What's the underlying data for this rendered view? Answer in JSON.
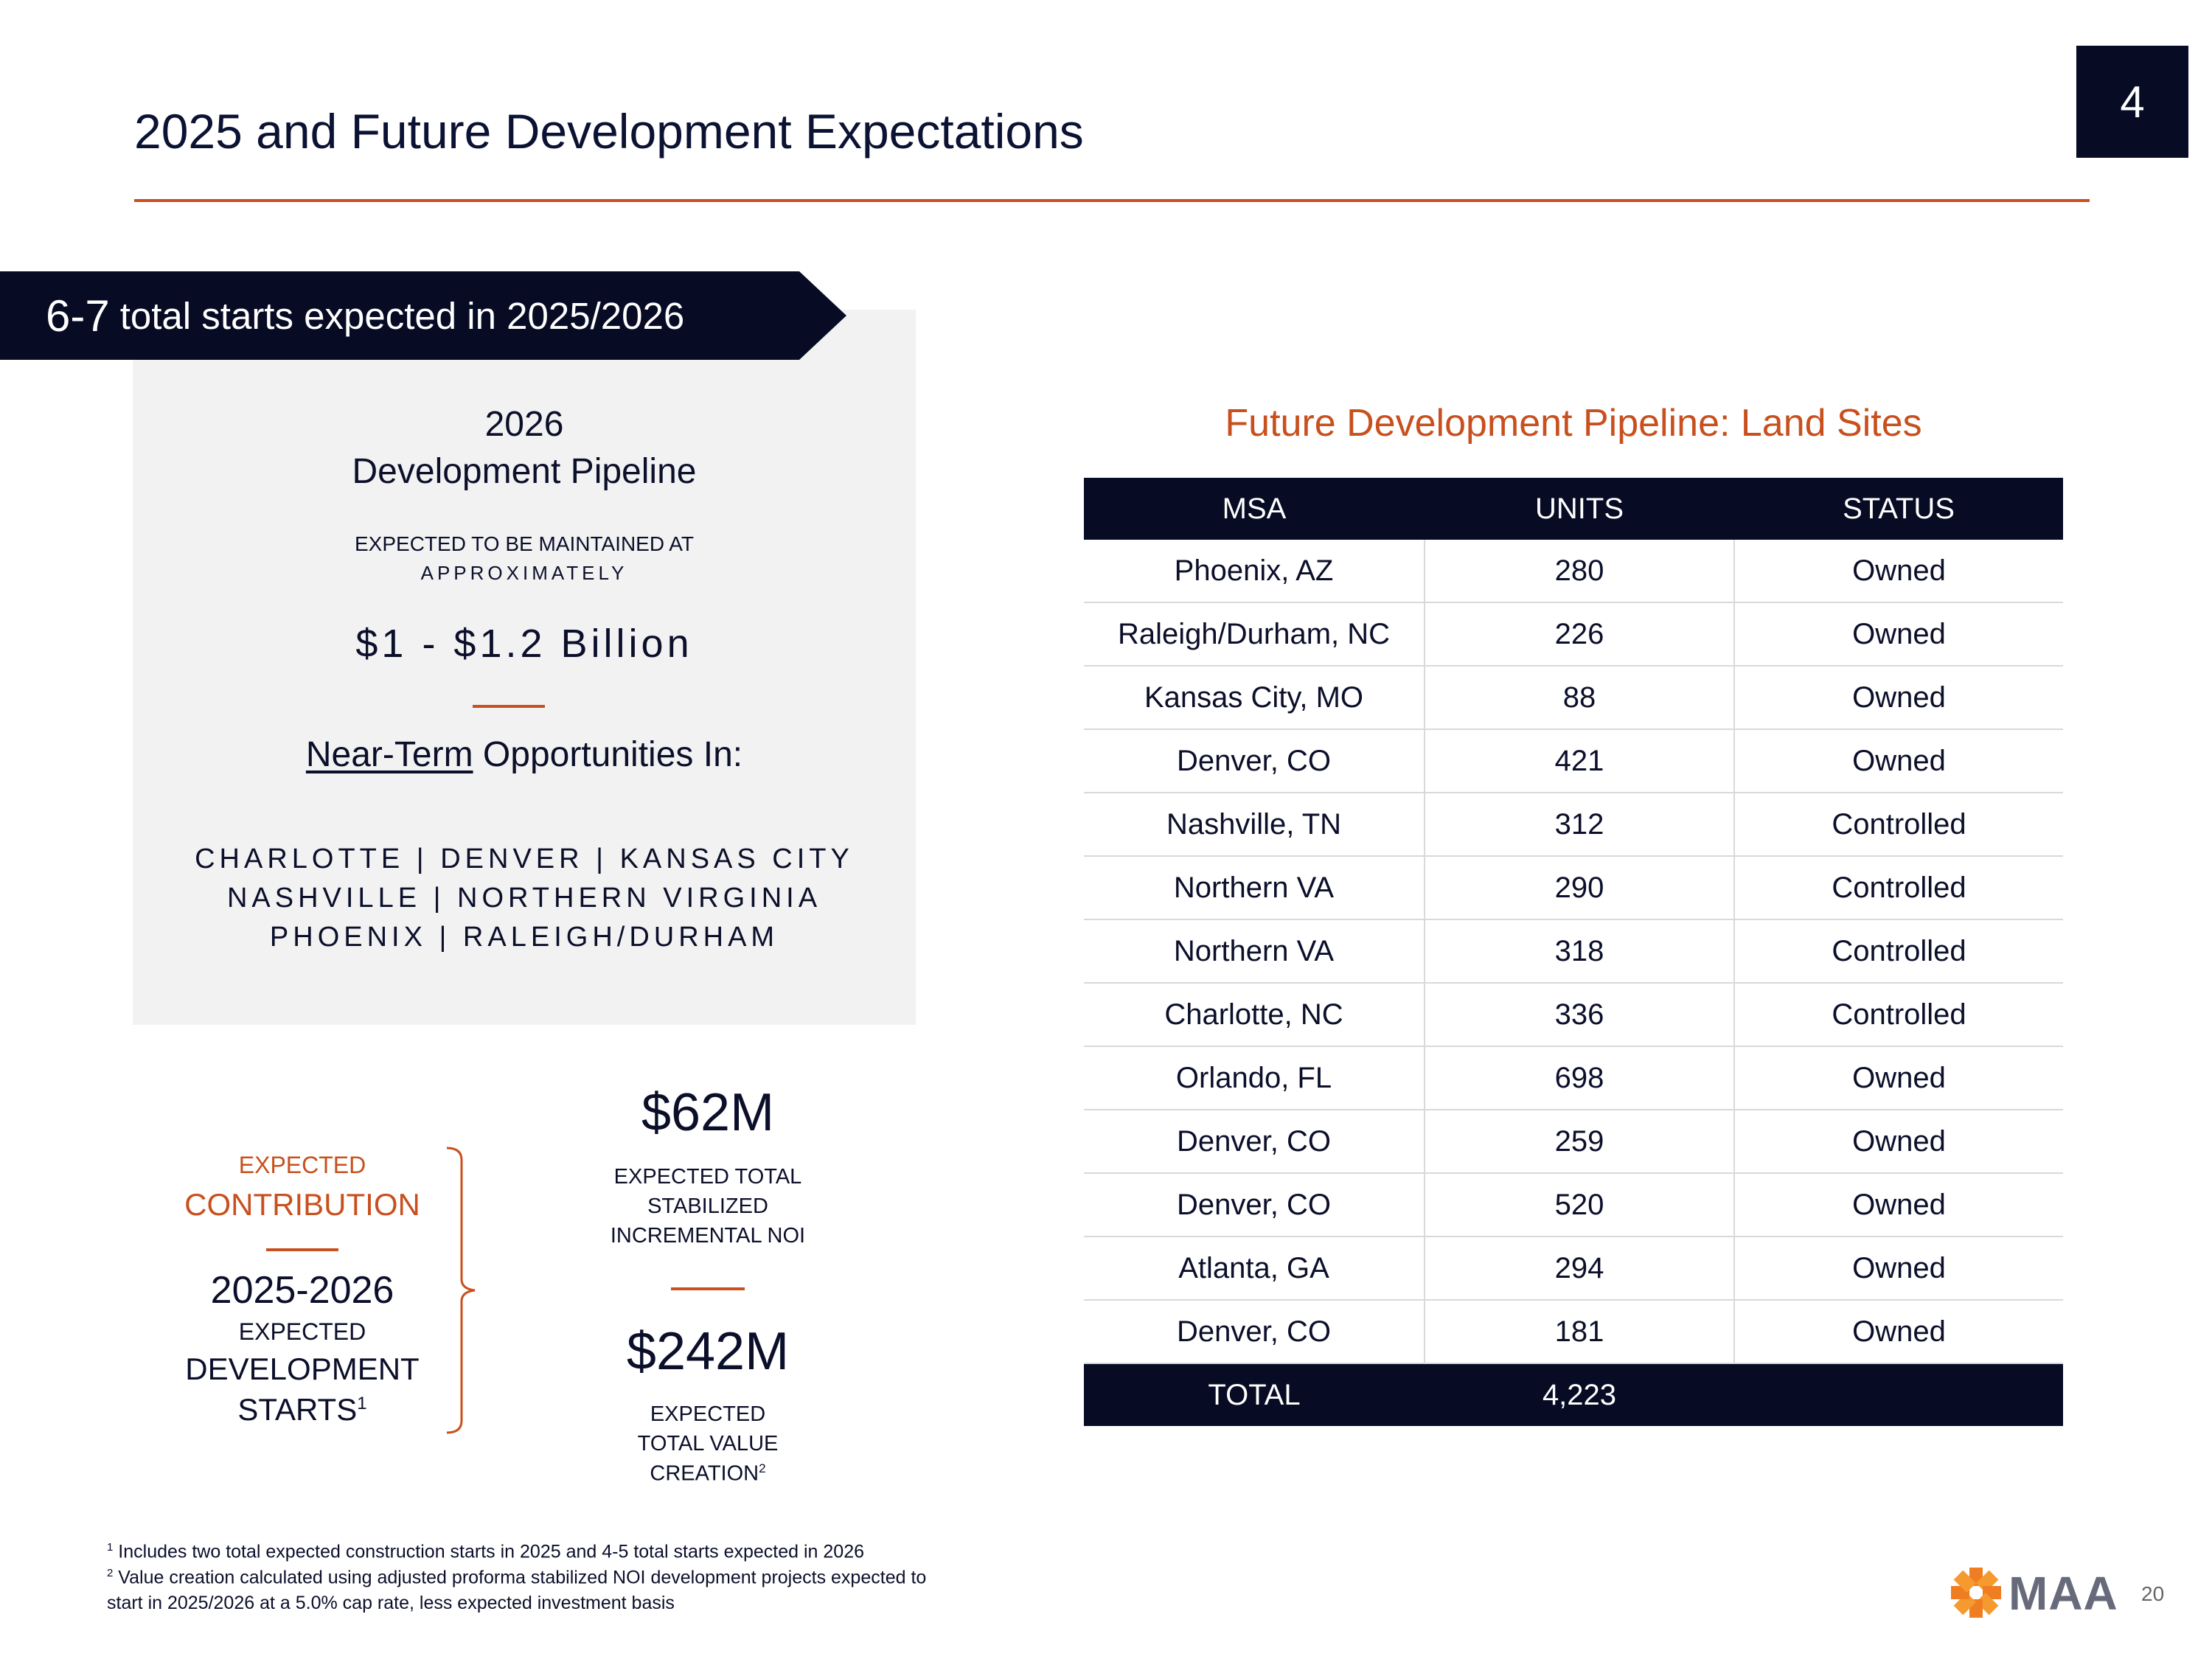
{
  "page": {
    "title": "2025 and Future Development Expectations",
    "section_badge": "4",
    "page_number": "20"
  },
  "banner": {
    "big": "6-7",
    "rest": "total starts expected in 2025/2026"
  },
  "pipeline": {
    "year": "2026",
    "title": "Development Pipeline",
    "sub_line1": "EXPECTED TO BE MAINTAINED AT",
    "sub_line2": "APPROXIMATELY",
    "amount": "$1 - $1.2 Billion",
    "near_term": "Near-Term",
    "opportunities": "Opportunities In:",
    "cities": [
      "CHARLOTTE | DENVER | KANSAS CITY",
      "NASHVILLE | NORTHERN VIRGINIA",
      "PHOENIX | RALEIGH/DURHAM"
    ]
  },
  "contribution": {
    "expected": "EXPECTED",
    "contribution": "CONTRIBUTION",
    "years": "2025-2026",
    "line_expected": "EXPECTED",
    "line_development": "DEVELOPMENT",
    "line_starts": "STARTS",
    "starts_sup": "1"
  },
  "noi": {
    "value": "$62M",
    "line1": "EXPECTED TOTAL",
    "line2": "STABILIZED",
    "line3": "INCREMENTAL NOI"
  },
  "value_creation": {
    "value": "$242M",
    "line1": "EXPECTED",
    "line2": "TOTAL VALUE",
    "line3": "CREATION",
    "sup": "2"
  },
  "land_table": {
    "title": "Future Development Pipeline: Land Sites",
    "headers": [
      "MSA",
      "UNITS",
      "STATUS"
    ],
    "rows": [
      [
        "Phoenix, AZ",
        "280",
        "Owned"
      ],
      [
        "Raleigh/Durham, NC",
        "226",
        "Owned"
      ],
      [
        "Kansas City, MO",
        "88",
        "Owned"
      ],
      [
        "Denver, CO",
        "421",
        "Owned"
      ],
      [
        "Nashville, TN",
        "312",
        "Controlled"
      ],
      [
        "Northern VA",
        "290",
        "Controlled"
      ],
      [
        "Northern VA",
        "318",
        "Controlled"
      ],
      [
        "Charlotte, NC",
        "336",
        "Controlled"
      ],
      [
        "Orlando, FL",
        "698",
        "Owned"
      ],
      [
        "Denver, CO",
        "259",
        "Owned"
      ],
      [
        "Denver, CO",
        "520",
        "Owned"
      ],
      [
        "Atlanta, GA",
        "294",
        "Owned"
      ],
      [
        "Denver, CO",
        "181",
        "Owned"
      ]
    ],
    "total_label": "TOTAL",
    "total_units": "4,223"
  },
  "footnotes": {
    "f1_sup": "1",
    "f1": "Includes two total expected construction starts in 2025 and 4-5 total starts expected in 2026",
    "f2_sup": "2",
    "f2_line1": "Value creation calculated using adjusted proforma stabilized NOI development projects expected to",
    "f2_line2": "start in 2025/2026 at a 5.0% cap rate, less expected investment basis"
  },
  "logo": {
    "text": "MAA"
  },
  "colors": {
    "navy": "#070b24",
    "accent": "#c8501e",
    "panel": "#f2f2f2"
  }
}
